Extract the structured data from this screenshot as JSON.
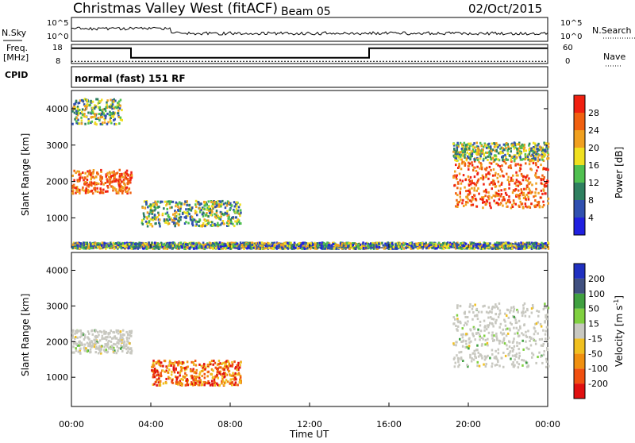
{
  "title": "Christmas Valley West (fitACF)",
  "beam": "Beam 05",
  "date": "02/Oct/2015",
  "labels": {
    "nsky": "N.Sky",
    "nsearch": "N.Search",
    "freq": "Freq.",
    "mhz": "[MHz]",
    "nave": "Nave",
    "cpid": "CPID",
    "mode": "normal (fast) 151 RF",
    "slant_range": "Slant Range [km]",
    "time_ut": "Time UT",
    "power": "Power [dB]",
    "velocity": "Velocity [m s",
    "velocity_exp": "-1",
    "velocity_close": "]"
  },
  "noise_panel": {
    "left_ticks": [
      "10^5",
      "10^0"
    ],
    "right_ticks": [
      "10^5",
      "10^0"
    ]
  },
  "freq_panel": {
    "left_ticks": [
      "18",
      "8"
    ],
    "right_ticks": [
      "60",
      "0"
    ],
    "freq_steps": [
      [
        0,
        16
      ],
      [
        3,
        11
      ],
      [
        15,
        16
      ],
      [
        24,
        16
      ]
    ],
    "nave_level": 7
  },
  "range_ticks": [
    1000,
    2000,
    3000,
    4000
  ],
  "time_ticks": [
    "00:00",
    "04:00",
    "08:00",
    "12:00",
    "16:00",
    "20:00",
    "00:00"
  ],
  "colors": {
    "power": [
      "#2020e0",
      "#3050b0",
      "#2f8060",
      "#50c050",
      "#f0e020",
      "#f0a020",
      "#f06010",
      "#f02010"
    ],
    "velocity": [
      "#e01010",
      "#f05010",
      "#f09010",
      "#f0c020",
      "#c8c8c0",
      "#80d040",
      "#40a040",
      "#405080",
      "#2030c0"
    ]
  },
  "chart_data": [
    {
      "type": "heatmap",
      "name": "power",
      "ylabel": "Slant Range [km]",
      "xlabel": "Time UT",
      "ylim": [
        180,
        4500
      ],
      "xlim": [
        0,
        24
      ],
      "colorbar_label": "Power [dB]",
      "colorbar_ticks": [
        4,
        8,
        12,
        16,
        20,
        24,
        28
      ],
      "regions": [
        {
          "t0": 0.0,
          "t1": 3.0,
          "r0": 1700,
          "r1": 2350,
          "level": "high"
        },
        {
          "t0": 0.0,
          "t1": 2.5,
          "r0": 3600,
          "r1": 4300,
          "level": "mid"
        },
        {
          "t0": 3.5,
          "t1": 8.5,
          "r0": 800,
          "r1": 1500,
          "level": "mid"
        },
        {
          "t0": 19.2,
          "t1": 24.0,
          "r0": 1300,
          "r1": 2600,
          "level": "high"
        },
        {
          "t0": 19.2,
          "t1": 24.0,
          "r0": 2600,
          "r1": 3100,
          "level": "mid"
        },
        {
          "t0": 0.0,
          "t1": 24.0,
          "r0": 180,
          "r1": 350,
          "level": "low"
        }
      ]
    },
    {
      "type": "heatmap",
      "name": "velocity",
      "ylabel": "Slant Range [km]",
      "xlabel": "Time UT",
      "ylim": [
        180,
        4500
      ],
      "xlim": [
        0,
        24
      ],
      "colorbar_label": "Velocity [m s-1]",
      "colorbar_ticks": [
        -200,
        -100,
        -50,
        -15,
        15,
        50,
        100,
        200
      ],
      "regions": [
        {
          "t0": 0.0,
          "t1": 3.0,
          "r0": 1700,
          "r1": 2350,
          "level": "gray"
        },
        {
          "t0": 4.0,
          "t1": 8.5,
          "r0": 800,
          "r1": 1500,
          "level": "neg"
        },
        {
          "t0": 19.2,
          "t1": 24.0,
          "r0": 1300,
          "r1": 3100,
          "level": "gray"
        }
      ]
    }
  ]
}
